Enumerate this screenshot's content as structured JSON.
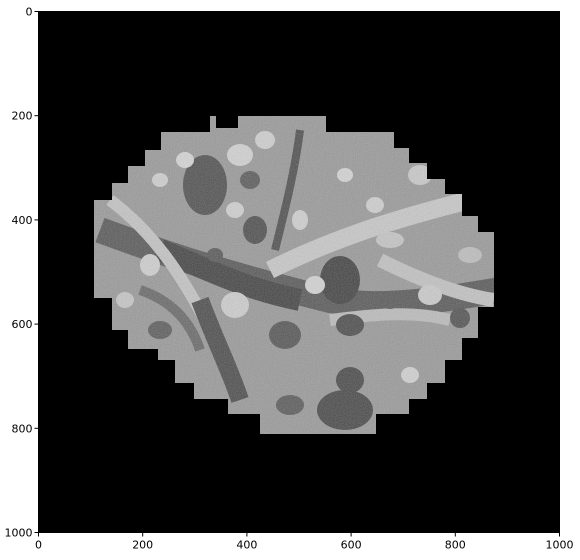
{
  "figure": {
    "image_description_label": "",
    "colors": {
      "background": "#000000",
      "axes_frame": "#000000",
      "tissue_light": "#bdbdbd",
      "tissue_mid": "#8c8c8c",
      "tissue_dark": "#4a4a4a"
    }
  },
  "chart_data": {
    "type": "heatmap",
    "title": "",
    "xlabel": "",
    "ylabel": "",
    "xlim": [
      0,
      1000
    ],
    "ylim": [
      1000,
      0
    ],
    "x_ticks": [
      "0",
      "200",
      "400",
      "600",
      "800",
      "1000"
    ],
    "y_ticks": [
      "0",
      "200",
      "400",
      "600",
      "800",
      "1000"
    ],
    "grid": false
  }
}
